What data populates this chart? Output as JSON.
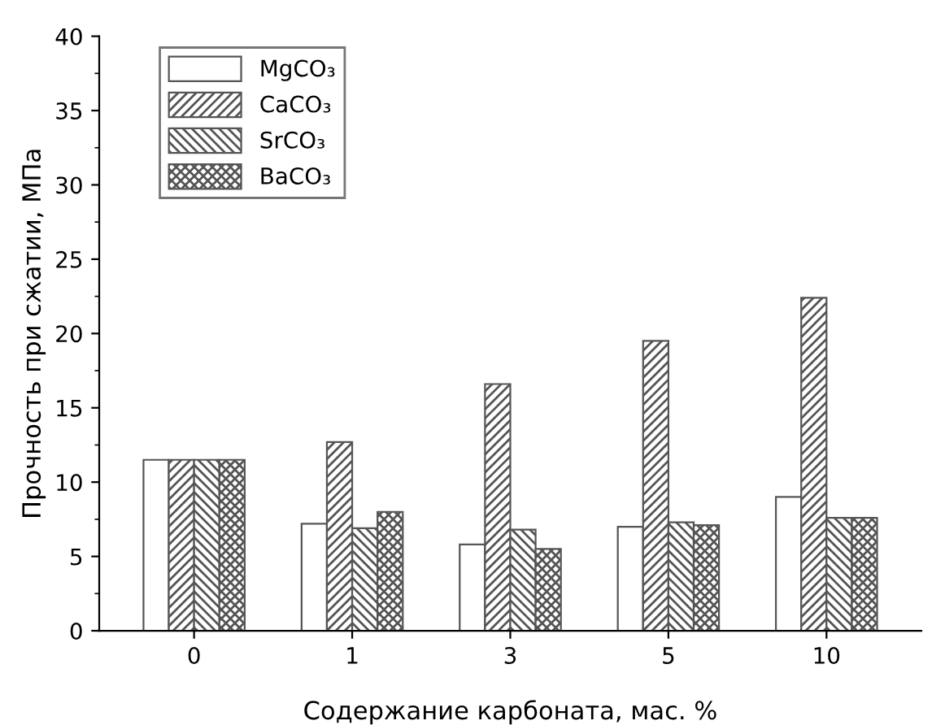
{
  "chart_data": {
    "type": "bar",
    "xlabel": "Содержание карбоната, мас. %",
    "ylabel": "Прочность при сжатии, МПа",
    "categories": [
      "0",
      "1",
      "3",
      "5",
      "10"
    ],
    "series": [
      {
        "name": "MgCO₃",
        "color": "#ffffff",
        "values": [
          11.5,
          7.2,
          5.8,
          7.0,
          9.0
        ]
      },
      {
        "name": "CaCO₃",
        "color": "#555555",
        "values": [
          11.5,
          12.7,
          16.6,
          19.5,
          22.4
        ]
      },
      {
        "name": "SrCO₃",
        "color": "#555555",
        "values": [
          11.5,
          6.9,
          6.8,
          7.3,
          7.6
        ]
      },
      {
        "name": "BaCO₃",
        "color": "#555555",
        "values": [
          11.5,
          8.0,
          5.5,
          7.1,
          7.6
        ]
      }
    ],
    "ylim": [
      0,
      40
    ],
    "yticks": [
      0,
      5,
      10,
      15,
      20,
      25,
      30,
      35,
      40
    ],
    "grid": false,
    "legend": "top left"
  }
}
